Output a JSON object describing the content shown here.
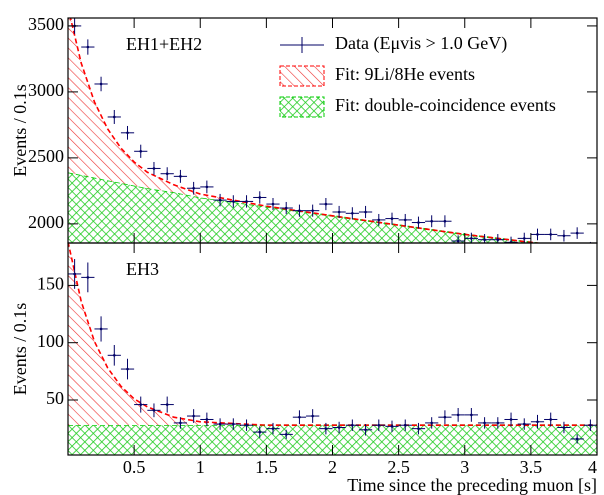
{
  "chart_data": [
    {
      "type": "errorbar-fit",
      "label": "EH1+EH2",
      "ylabel": "Events / 0.1s",
      "xlim": [
        0,
        4
      ],
      "ylim": [
        1855,
        3560
      ],
      "yticks": [
        2000,
        2500,
        3000,
        3500
      ],
      "data": {
        "name": "Data (Eμvis > 1.0 GeV)",
        "color": "#000066",
        "xerr": 0.05,
        "x": [
          0.05,
          0.15,
          0.25,
          0.35,
          0.45,
          0.55,
          0.65,
          0.75,
          0.85,
          0.95,
          1.05,
          1.15,
          1.25,
          1.35,
          1.45,
          1.55,
          1.65,
          1.75,
          1.85,
          1.95,
          2.05,
          2.15,
          2.25,
          2.35,
          2.45,
          2.55,
          2.65,
          2.75,
          2.85,
          2.95,
          3.05,
          3.15,
          3.25,
          3.35,
          3.45,
          3.55,
          3.65,
          3.75,
          3.85,
          3.95
        ],
        "values": [
          3500,
          3340,
          3060,
          2810,
          2690,
          2550,
          2420,
          2380,
          2360,
          2270,
          2280,
          2180,
          2170,
          2170,
          2200,
          2150,
          2120,
          2100,
          2100,
          2150,
          2090,
          2080,
          2090,
          2030,
          2040,
          2030,
          2010,
          2020,
          2020,
          1870,
          1890,
          1880,
          1880,
          1860,
          1890,
          1920,
          1920,
          1910,
          1930,
          1820
        ],
        "errors": [
          60,
          58,
          55,
          53,
          52,
          50,
          49,
          49,
          49,
          48,
          48,
          47,
          47,
          47,
          47,
          46,
          46,
          46,
          46,
          46,
          46,
          46,
          46,
          45,
          45,
          45,
          45,
          45,
          45,
          43,
          43,
          43,
          43,
          43,
          43,
          44,
          44,
          44,
          44,
          43
        ]
      },
      "fit_x": [
        0,
        0.1,
        0.2,
        0.3,
        0.4,
        0.5,
        0.6,
        0.8,
        1,
        1.5,
        2,
        2.5,
        3,
        3.5,
        4
      ],
      "series": [
        {
          "name": "Fit: double-coincidence events",
          "color": "#00cc00",
          "values": [
            2390,
            2370,
            2350,
            2330,
            2310,
            2290,
            2270,
            2240,
            2200,
            2130,
            2060,
            1990,
            1920,
            1860,
            1800
          ]
        },
        {
          "name": "Fit: 9Li/8He events",
          "color": "#ff0000",
          "values": [
            1250,
            848,
            574,
            389,
            264,
            179,
            121,
            56,
            26,
            4,
            1,
            0,
            0,
            0,
            0
          ]
        }
      ]
    },
    {
      "type": "errorbar-fit",
      "label": "EH3",
      "ylabel": "Events / 0.1s",
      "xlabel": "Time since the preceding muon [s]",
      "xlim": [
        0,
        4
      ],
      "ylim": [
        2,
        187
      ],
      "yticks": [
        50,
        100,
        150
      ],
      "xticks": [
        0.5,
        1,
        1.5,
        2,
        2.5,
        3,
        3.5,
        4
      ],
      "data": {
        "color": "#000066",
        "xerr": 0.05,
        "x": [
          0.05,
          0.15,
          0.25,
          0.35,
          0.45,
          0.55,
          0.65,
          0.75,
          0.85,
          0.95,
          1.05,
          1.15,
          1.25,
          1.35,
          1.45,
          1.55,
          1.65,
          1.75,
          1.85,
          1.95,
          2.05,
          2.15,
          2.25,
          2.35,
          2.45,
          2.55,
          2.65,
          2.75,
          2.85,
          2.95,
          3.05,
          3.15,
          3.25,
          3.35,
          3.45,
          3.55,
          3.65,
          3.75,
          3.85,
          3.95
        ],
        "values": [
          160,
          157,
          112,
          89,
          77,
          46,
          41,
          46,
          30,
          36,
          33,
          29,
          29,
          28,
          22,
          25,
          20,
          35,
          36,
          25,
          26,
          28,
          24,
          28,
          27,
          28,
          25,
          30,
          35,
          37,
          37,
          30,
          30,
          33,
          29,
          31,
          33,
          26,
          16,
          28
        ],
        "errors": [
          13,
          13,
          11,
          9,
          9,
          7,
          6,
          7,
          5,
          6,
          6,
          5,
          5,
          5,
          5,
          5,
          4,
          6,
          6,
          5,
          5,
          5,
          5,
          5,
          5,
          5,
          5,
          5,
          6,
          6,
          6,
          5,
          5,
          6,
          5,
          6,
          6,
          5,
          4,
          5
        ]
      },
      "fit_x": [
        0,
        0.1,
        0.2,
        0.3,
        0.4,
        0.5,
        0.6,
        0.8,
        1,
        1.5,
        2,
        2.5,
        3,
        3.5,
        4
      ],
      "series": [
        {
          "color": "#00cc00",
          "values": [
            28,
            28,
            28,
            28,
            28,
            28,
            28,
            28,
            28,
            28,
            28,
            28,
            28,
            28,
            28
          ]
        },
        {
          "color": "#ff0000",
          "values": [
            160,
            108,
            73,
            50,
            34,
            23,
            16,
            7,
            3,
            0,
            0,
            0,
            0,
            0,
            0
          ]
        }
      ]
    }
  ]
}
